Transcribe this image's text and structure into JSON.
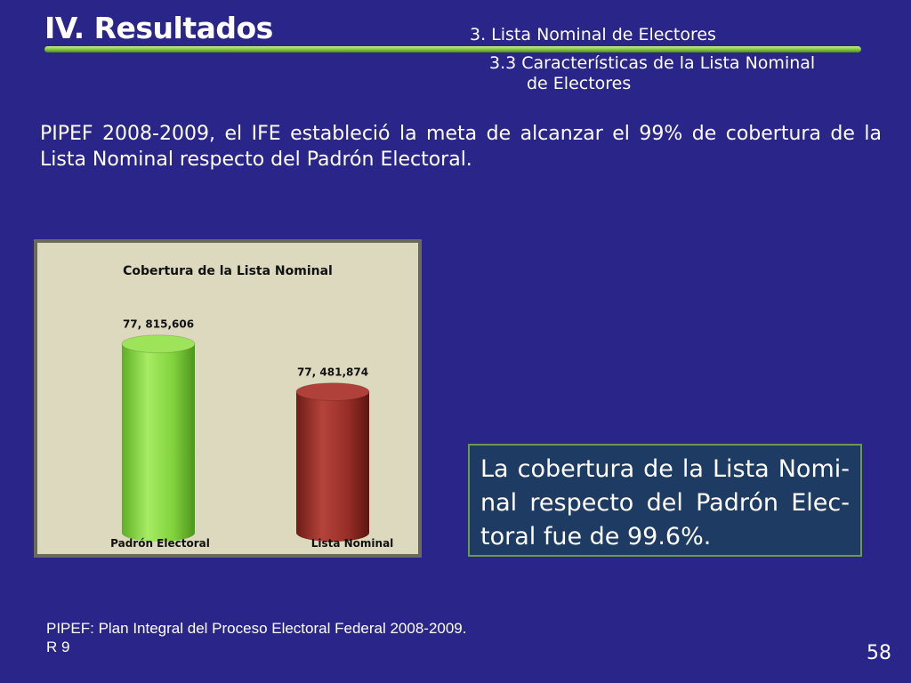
{
  "header": {
    "title": "IV. Resultados",
    "section": "3. Lista Nominal de Electores",
    "subsection_line1": "3.3 Características de la Lista Nominal",
    "subsection_line2": "de Electores"
  },
  "intro_text": "PIPEF 2008-2009, el IFE estableció la meta de alcanzar el 99% de cobertura de la Lista Nominal respecto del Padrón Electoral.",
  "chart_data": {
    "type": "bar",
    "title": "Cobertura de la Lista Nominal",
    "categories": [
      "Padrón Electoral",
      "Lista Nominal"
    ],
    "values": [
      77815606,
      77481874
    ],
    "data_labels": [
      "77, 815,606",
      "77, 481,874"
    ],
    "colors": [
      "#8fd94a",
      "#9b2f2a"
    ],
    "xlabel": "",
    "ylabel": "",
    "grid": false,
    "ylim": [
      76500000,
      78000000
    ]
  },
  "callout_text": "La cobertura de la Lista Nomi-nal respecto del Padrón Elec-toral fue de 99.6%.",
  "footnote": {
    "line1": "PIPEF: Plan Integral del Proceso Electoral Federal 2008-2009.",
    "line2": "R 9"
  },
  "page_number": "58"
}
